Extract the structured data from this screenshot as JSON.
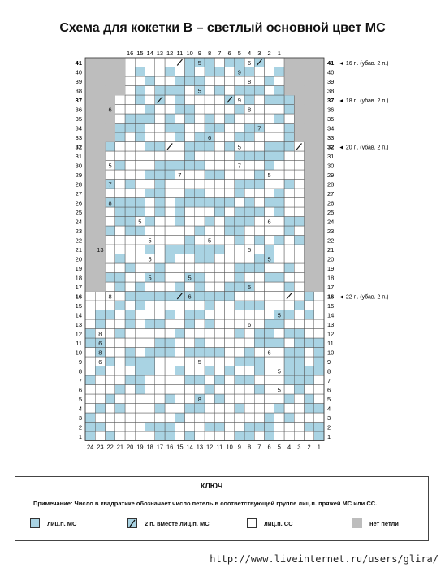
{
  "header": {
    "title": "Схема для кокетки B – светлый основной цвет MC"
  },
  "colors": {
    "mc": "#a9d3e3",
    "cc": "#ffffff",
    "no_stitch": "#bdbdbd",
    "grid": "#555555"
  },
  "chart": {
    "top_column_numbers": [
      "16",
      "15",
      "14",
      "13",
      "12",
      "11",
      "10",
      "9",
      "8",
      "7",
      "6",
      "5",
      "4",
      "3",
      "2",
      "1"
    ],
    "bottom_column_numbers": [
      "24",
      "23",
      "22",
      "21",
      "20",
      "19",
      "18",
      "17",
      "16",
      "15",
      "14",
      "13",
      "12",
      "11",
      "10",
      "9",
      "8",
      "7",
      "6",
      "5",
      "4",
      "3",
      "2",
      "1"
    ],
    "bold_rows": [
      "41",
      "37",
      "32",
      "16"
    ],
    "decrease_notes": [
      {
        "row": "41",
        "text": "16 п. (убав. 2 п.)"
      },
      {
        "row": "37",
        "text": "18 п. (убав. 2 п.)"
      },
      {
        "row": "32",
        "text": "20 п. (убав. 2 п.)"
      },
      {
        "row": "16",
        "text": "22 п. (убав. 2 п.)"
      }
    ],
    "cell_numbers": [
      {
        "row": 41,
        "col": 13,
        "text": "5"
      },
      {
        "row": 41,
        "col": 8,
        "text": "6"
      },
      {
        "row": 40,
        "col": 9,
        "text": "9"
      },
      {
        "row": 39,
        "col": 8,
        "text": "8"
      },
      {
        "row": 38,
        "col": 13,
        "text": "5"
      },
      {
        "row": 37,
        "col": 9,
        "text": "9"
      },
      {
        "row": 36,
        "col": 22,
        "text": "6"
      },
      {
        "row": 36,
        "col": 8,
        "text": "8"
      },
      {
        "row": 34,
        "col": 7,
        "text": "7"
      },
      {
        "row": 33,
        "col": 12,
        "text": "6"
      },
      {
        "row": 32,
        "col": 9,
        "text": "5"
      },
      {
        "row": 30,
        "col": 22,
        "text": "5"
      },
      {
        "row": 30,
        "col": 9,
        "text": "7"
      },
      {
        "row": 29,
        "col": 15,
        "text": "7"
      },
      {
        "row": 29,
        "col": 6,
        "text": "5"
      },
      {
        "row": 28,
        "col": 22,
        "text": "7"
      },
      {
        "row": 26,
        "col": 22,
        "text": "8"
      },
      {
        "row": 24,
        "col": 19,
        "text": "5"
      },
      {
        "row": 24,
        "col": 6,
        "text": "6"
      },
      {
        "row": 22,
        "col": 18,
        "text": "5"
      },
      {
        "row": 22,
        "col": 12,
        "text": "5"
      },
      {
        "row": 21,
        "col": 23,
        "text": "13"
      },
      {
        "row": 21,
        "col": 8,
        "text": "5"
      },
      {
        "row": 20,
        "col": 18,
        "text": "5"
      },
      {
        "row": 20,
        "col": 6,
        "text": "5"
      },
      {
        "row": 18,
        "col": 18,
        "text": "5"
      },
      {
        "row": 18,
        "col": 14,
        "text": "5"
      },
      {
        "row": 17,
        "col": 8,
        "text": "5"
      },
      {
        "row": 16,
        "col": 22,
        "text": "8"
      },
      {
        "row": 16,
        "col": 14,
        "text": "6"
      },
      {
        "row": 14,
        "col": 5,
        "text": "5"
      },
      {
        "row": 13,
        "col": 8,
        "text": "6"
      },
      {
        "row": 12,
        "col": 23,
        "text": "8"
      },
      {
        "row": 11,
        "col": 23,
        "text": "6"
      },
      {
        "row": 10,
        "col": 23,
        "text": "8"
      },
      {
        "row": 10,
        "col": 6,
        "text": "6"
      },
      {
        "row": 9,
        "col": 23,
        "text": "6"
      },
      {
        "row": 9,
        "col": 13,
        "text": "5"
      },
      {
        "row": 8,
        "col": 5,
        "text": "5"
      },
      {
        "row": 6,
        "col": 5,
        "text": "5"
      },
      {
        "row": 5,
        "col": 13,
        "text": "8"
      }
    ],
    "slash_cells": [
      {
        "row": 41,
        "col": 15
      },
      {
        "row": 41,
        "col": 7
      },
      {
        "row": 37,
        "col": 17
      },
      {
        "row": 37,
        "col": 10
      },
      {
        "row": 32,
        "col": 16
      },
      {
        "row": 32,
        "col": 3
      },
      {
        "row": 16,
        "col": 15
      },
      {
        "row": 16,
        "col": 4
      }
    ]
  },
  "legend": {
    "key_title": "КЛЮЧ",
    "note": "Примечание: Число в квадратике обозначает число петель в соответствующей группе лиц.п. пряжей MC или CC.",
    "items": [
      {
        "symbol": "mc",
        "label": "лиц.п. MC"
      },
      {
        "symbol": "slash",
        "label": "2 п. вместе лиц.п. MC"
      },
      {
        "symbol": "cc",
        "label": "лиц.п. CC"
      },
      {
        "symbol": "none",
        "label": "нет петли"
      }
    ]
  },
  "footer": {
    "source_url": "http://www.liveinternet.ru/users/glira/"
  }
}
